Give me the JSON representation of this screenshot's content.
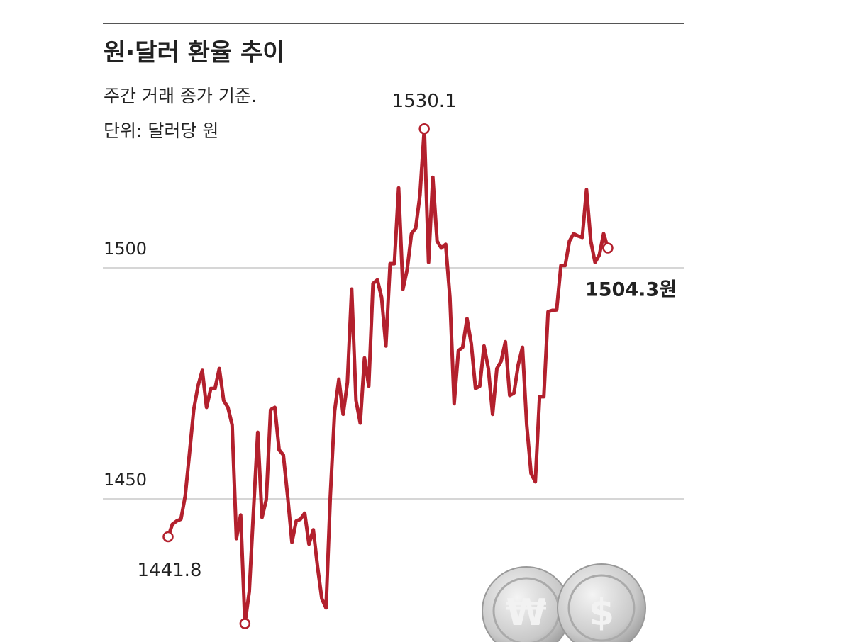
{
  "chart_data": {
    "type": "line",
    "title": "원·달러 환율 추이",
    "subtitle": [
      "주간 거래 종가 기준.",
      "단위: 달러당 원"
    ],
    "color": "#b3202d",
    "ylim": [
      1420,
      1540
    ],
    "yticks": [
      1450,
      1500
    ],
    "grid": true,
    "values": [
      1441.8,
      1444.5,
      1445.2,
      1445.6,
      1450.6,
      1459.8,
      1469.3,
      1474.4,
      1477.8,
      1469.8,
      1473.9,
      1473.9,
      1478.2,
      1471.3,
      1469.8,
      1466.0,
      1441.4,
      1446.5,
      1423.0,
      1429.9,
      1447.5,
      1464.4,
      1446.0,
      1449.8,
      1469.3,
      1469.8,
      1460.6,
      1459.5,
      1450.6,
      1440.6,
      1445.2,
      1445.6,
      1446.9,
      1440.2,
      1443.3,
      1435.3,
      1428.4,
      1426.4,
      1450.6,
      1469.0,
      1475.9,
      1468.3,
      1475.2,
      1495.4,
      1471.3,
      1466.4,
      1480.5,
      1474.4,
      1496.6,
      1497.4,
      1493.6,
      1483.1,
      1500.9,
      1500.9,
      1517.3,
      1495.4,
      1499.7,
      1507.4,
      1508.6,
      1515.8,
      1530.1,
      1501.2,
      1519.6,
      1505.8,
      1504.3,
      1505.1,
      1493.6,
      1470.6,
      1482.1,
      1482.8,
      1489.0,
      1483.6,
      1473.9,
      1474.4,
      1483.1,
      1478.2,
      1468.3,
      1478.2,
      1479.8,
      1484.0,
      1472.4,
      1472.9,
      1479.0,
      1482.8,
      1466.0,
      1455.5,
      1453.7,
      1472.1,
      1472.1,
      1490.5,
      1490.8,
      1490.9,
      1500.5,
      1500.5,
      1505.8,
      1507.4,
      1506.9,
      1506.6,
      1516.9,
      1505.8,
      1501.2,
      1502.8,
      1507.4,
      1504.3
    ],
    "value_labels": [
      "1441.8",
      null,
      null,
      null,
      null,
      null,
      null,
      null,
      null,
      null,
      null,
      null,
      null,
      null,
      null,
      null,
      null,
      null,
      null,
      null,
      null,
      null,
      null,
      null,
      null,
      null,
      null,
      null,
      null,
      null,
      null,
      null,
      null,
      null,
      null,
      null,
      null,
      null,
      null,
      null,
      null,
      null,
      null,
      null,
      null,
      null,
      null,
      null,
      null,
      null,
      null,
      null,
      null,
      null,
      null,
      null,
      null,
      null,
      null,
      null,
      "1530.1",
      null,
      null,
      null,
      null,
      null,
      null,
      null,
      null,
      null,
      null,
      null,
      null,
      null,
      null,
      null,
      null,
      null,
      null,
      null,
      null,
      null,
      null,
      null,
      null,
      null,
      null,
      null,
      null,
      null,
      null,
      null,
      null,
      null,
      null,
      null,
      null,
      null,
      null,
      null,
      null,
      null,
      null,
      "1504.3원"
    ],
    "coin_symbols": [
      "₩",
      "$"
    ]
  }
}
